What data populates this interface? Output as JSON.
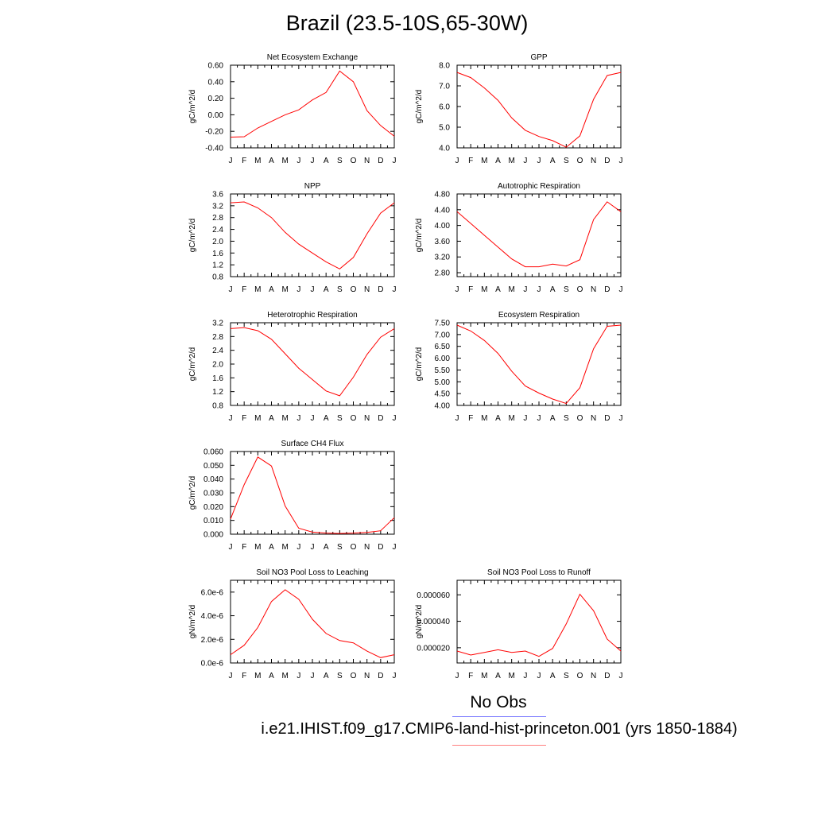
{
  "page": {
    "title": "Brazil (23.5-10S,65-30W)",
    "legend": {
      "obs_label": "No Obs",
      "obs_color": "#7f7fff",
      "model_label": "i.e21.IHIST.f09_g17.CMIP6-land-hist-princeton.001 (yrs 1850-1884)",
      "model_color": "#ff7f7f"
    }
  },
  "chart_data": [
    {
      "type": "line",
      "title": "Net Ecosystem Exchange",
      "ylabel": "gC/m^2/d",
      "categories": [
        "J",
        "F",
        "M",
        "A",
        "M",
        "J",
        "J",
        "A",
        "S",
        "O",
        "N",
        "D",
        "J"
      ],
      "yticks": [
        "-0.40",
        "-0.20",
        "0.00",
        "0.20",
        "0.40",
        "0.60"
      ],
      "ylim": [
        -0.4,
        0.6
      ],
      "series": [
        {
          "color": "#ff0000",
          "values": [
            -0.27,
            -0.265,
            -0.16,
            -0.08,
            0.0,
            0.06,
            0.18,
            0.27,
            0.53,
            0.4,
            0.05,
            -0.13,
            -0.26
          ]
        }
      ]
    },
    {
      "type": "line",
      "title": "GPP",
      "ylabel": "gC/m^2/d",
      "categories": [
        "J",
        "F",
        "M",
        "A",
        "M",
        "J",
        "J",
        "A",
        "S",
        "O",
        "N",
        "D",
        "J"
      ],
      "yticks": [
        "4.0",
        "5.0",
        "6.0",
        "7.0",
        "8.0"
      ],
      "ylim": [
        4.0,
        8.0
      ],
      "series": [
        {
          "color": "#ff0000",
          "values": [
            7.65,
            7.4,
            6.9,
            6.3,
            5.45,
            4.85,
            4.55,
            4.35,
            4.03,
            4.58,
            6.35,
            7.5,
            7.65
          ]
        }
      ]
    },
    {
      "type": "line",
      "title": "NPP",
      "ylabel": "gC/m^2/d",
      "categories": [
        "J",
        "F",
        "M",
        "A",
        "M",
        "J",
        "J",
        "A",
        "S",
        "O",
        "N",
        "D",
        "J"
      ],
      "yticks": [
        "0.8",
        "1.2",
        "1.6",
        "2.0",
        "2.4",
        "2.8",
        "3.2",
        "3.6"
      ],
      "ylim": [
        0.8,
        3.6
      ],
      "series": [
        {
          "color": "#ff0000",
          "values": [
            3.3,
            3.33,
            3.13,
            2.8,
            2.3,
            1.9,
            1.6,
            1.3,
            1.06,
            1.45,
            2.25,
            2.95,
            3.3
          ]
        }
      ]
    },
    {
      "type": "line",
      "title": "Autotrophic Respiration",
      "ylabel": "gC/m^2/d",
      "categories": [
        "J",
        "F",
        "M",
        "A",
        "M",
        "J",
        "J",
        "A",
        "S",
        "O",
        "N",
        "D",
        "J"
      ],
      "yticks": [
        "2.80",
        "3.20",
        "3.60",
        "4.00",
        "4.40",
        "4.80"
      ],
      "ylim": [
        2.7,
        4.8
      ],
      "series": [
        {
          "color": "#ff0000",
          "values": [
            4.35,
            4.05,
            3.75,
            3.45,
            3.15,
            2.95,
            2.95,
            3.02,
            2.97,
            3.13,
            4.15,
            4.6,
            4.35
          ]
        }
      ]
    },
    {
      "type": "line",
      "title": "Heterotrophic Respiration",
      "ylabel": "gC/m^2/d",
      "categories": [
        "J",
        "F",
        "M",
        "A",
        "M",
        "J",
        "J",
        "A",
        "S",
        "O",
        "N",
        "D",
        "J"
      ],
      "yticks": [
        "0.8",
        "1.2",
        "1.6",
        "2.0",
        "2.4",
        "2.8",
        "3.2"
      ],
      "ylim": [
        0.8,
        3.2
      ],
      "series": [
        {
          "color": "#ff0000",
          "values": [
            3.03,
            3.06,
            2.97,
            2.72,
            2.3,
            1.88,
            1.55,
            1.22,
            1.08,
            1.62,
            2.28,
            2.78,
            3.03
          ]
        }
      ]
    },
    {
      "type": "line",
      "title": "Ecosystem Respiration",
      "ylabel": "gC/m^2/d",
      "categories": [
        "J",
        "F",
        "M",
        "A",
        "M",
        "J",
        "J",
        "A",
        "S",
        "O",
        "N",
        "D",
        "J"
      ],
      "yticks": [
        "4.00",
        "4.50",
        "5.00",
        "5.50",
        "6.00",
        "6.50",
        "7.00",
        "7.50"
      ],
      "ylim": [
        4.0,
        7.5
      ],
      "series": [
        {
          "color": "#ff0000",
          "values": [
            7.4,
            7.15,
            6.75,
            6.2,
            5.45,
            4.82,
            4.52,
            4.27,
            4.08,
            4.75,
            6.4,
            7.35,
            7.4
          ]
        }
      ]
    },
    {
      "type": "line",
      "title": "Surface CH4 Flux",
      "ylabel": "gC/m^2/d",
      "categories": [
        "J",
        "F",
        "M",
        "A",
        "M",
        "J",
        "J",
        "A",
        "S",
        "O",
        "N",
        "D",
        "J"
      ],
      "yticks": [
        "0.000",
        "0.010",
        "0.020",
        "0.030",
        "0.040",
        "0.050",
        "0.060"
      ],
      "ylim": [
        0.0,
        0.06
      ],
      "series": [
        {
          "color": "#ff0000",
          "values": [
            0.011,
            0.036,
            0.056,
            0.0495,
            0.0205,
            0.0043,
            0.0015,
            0.0008,
            0.0005,
            0.0008,
            0.0013,
            0.0025,
            0.012
          ]
        }
      ]
    },
    {
      "type": "line",
      "title": "Soil NO3 Pool Loss to Leaching",
      "ylabel": "gN/m^2/d",
      "categories": [
        "J",
        "F",
        "M",
        "A",
        "M",
        "J",
        "J",
        "A",
        "S",
        "O",
        "N",
        "D",
        "J"
      ],
      "yticks": [
        "0.0e-6",
        "2.0e-6",
        "4.0e-6",
        "6.0e-6"
      ],
      "ylim": [
        0.0,
        7e-06
      ],
      "series": [
        {
          "color": "#ff0000",
          "values": [
            7e-07,
            1.5e-06,
            3e-06,
            5.2e-06,
            6.2e-06,
            5.4e-06,
            3.7e-06,
            2.5e-06,
            1.9e-06,
            1.7e-06,
            1e-06,
            4.5e-07,
            7e-07
          ]
        }
      ]
    },
    {
      "type": "line",
      "title": "Soil NO3 Pool Loss to Runoff",
      "ylabel": "gN/m^2/d",
      "categories": [
        "J",
        "F",
        "M",
        "A",
        "M",
        "J",
        "J",
        "A",
        "S",
        "O",
        "N",
        "D",
        "J"
      ],
      "yticks": [
        "0.000020",
        "0.000040",
        "0.000060"
      ],
      "ylim": [
        8.5e-06,
        7.1e-05
      ],
      "series": [
        {
          "color": "#ff0000",
          "values": [
            1.75e-05,
            1.45e-05,
            1.65e-05,
            1.85e-05,
            1.65e-05,
            1.75e-05,
            1.35e-05,
            1.95e-05,
            3.8e-05,
            6.05e-05,
            4.8e-05,
            2.65e-05,
            1.75e-05
          ]
        }
      ]
    }
  ]
}
